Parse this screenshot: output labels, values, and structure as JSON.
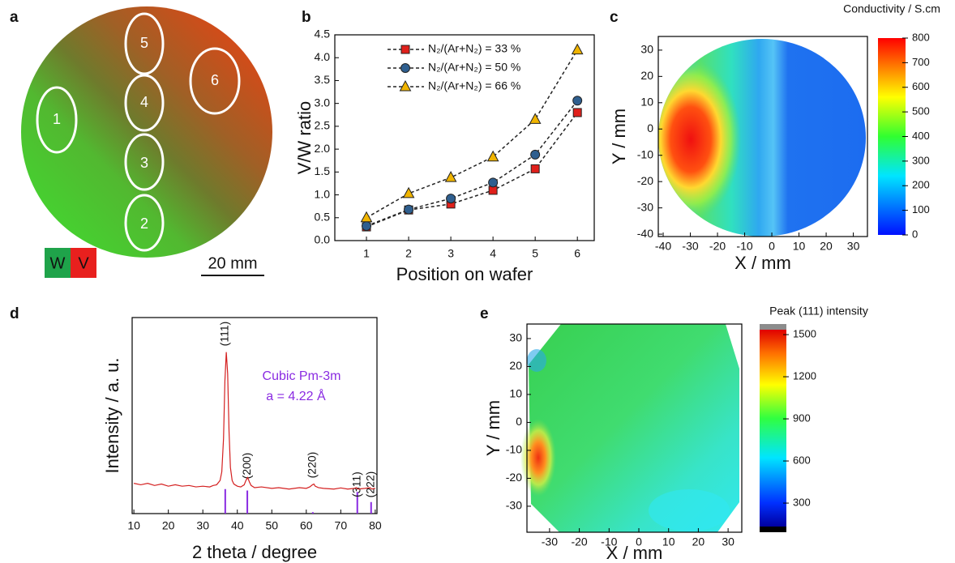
{
  "chart_data": [
    {
      "type": "image",
      "label": "a",
      "spot_labels": [
        "1",
        "2",
        "3",
        "4",
        "5",
        "6"
      ],
      "legend": [
        {
          "name": "W",
          "color": "#1fa34a"
        },
        {
          "name": "V",
          "color": "#e8201e"
        }
      ],
      "scale_bar": "20 mm"
    },
    {
      "type": "line",
      "label": "b",
      "xlabel": "Position on wafer",
      "ylabel": "V/W ratio",
      "x": [
        1,
        2,
        3,
        4,
        5,
        6
      ],
      "xlim": [
        0.25,
        6.4
      ],
      "xticks": [
        1,
        2,
        3,
        4,
        5,
        6
      ],
      "ylim": [
        0,
        4.5
      ],
      "yticks": [
        {
          "value": 0,
          "label": "0.0"
        },
        0.5,
        {
          "value": 1,
          "label": "1.0"
        },
        1.5,
        {
          "value": 2,
          "label": "2.0"
        },
        2.5,
        {
          "value": 3,
          "label": "3.0"
        },
        3.5,
        {
          "value": 4,
          "label": "4.0"
        },
        4.5
      ],
      "legend": "upper left",
      "series": [
        {
          "name": "N₂/(Ar+N₂) = 33 %",
          "color": "#e0201b",
          "marker": "square",
          "line_color": "#222222",
          "line_style": "dashed",
          "values": [
            0.3,
            0.67,
            0.8,
            1.1,
            1.57,
            2.8
          ]
        },
        {
          "name": "N₂/(Ar+N₂) = 50 %",
          "color": "#2f5f8f",
          "marker": "circle",
          "line_color": "#222222",
          "line_style": "dashed",
          "values": [
            0.32,
            0.68,
            0.92,
            1.27,
            1.88,
            3.06
          ]
        },
        {
          "name": "N₂/(Ar+N₂) = 66 %",
          "color": "#f0b400",
          "marker": "triangle",
          "line_color": "#222222",
          "line_style": "dashed",
          "values": [
            0.5,
            1.03,
            1.38,
            1.83,
            2.65,
            4.17
          ]
        }
      ]
    },
    {
      "type": "heatmap",
      "label": "c",
      "xlabel": "X / mm",
      "ylabel": "Y / mm",
      "xlim": [
        -41.8,
        35.2
      ],
      "xticks": [
        -40,
        -30,
        -20,
        -10,
        0,
        10,
        20,
        30
      ],
      "ylim": [
        -40.9,
        35.2
      ],
      "yticks": [
        -40,
        -30,
        -20,
        -10,
        0,
        10,
        20,
        30
      ],
      "colorbar_title": "Conductivity / S.cm",
      "colorbar_lim": [
        0,
        800
      ],
      "colorbar_ticks": [
        0,
        100,
        200,
        300,
        400,
        500,
        600,
        700,
        800
      ]
    },
    {
      "type": "line",
      "label": "d",
      "xlabel": "2 theta / degree",
      "ylabel": "Intensity / a. u.",
      "xlim": [
        9.5,
        80.5
      ],
      "xticks": [
        10,
        20,
        30,
        40,
        50,
        60,
        70,
        80
      ],
      "ylim": [
        -17,
        119
      ],
      "series": [
        {
          "color": "#d42020",
          "line_color": "#d42020",
          "line_style": "solid",
          "x": [
            10,
            12,
            14,
            16,
            18,
            20,
            22,
            24,
            26,
            28,
            30,
            32,
            33,
            34,
            35,
            35.5,
            36,
            36.4,
            36.8,
            37.2,
            37.6,
            38,
            38.5,
            39,
            40,
            41,
            42,
            42.5,
            43,
            43.5,
            44,
            45,
            47,
            50,
            52,
            55,
            58,
            60,
            61,
            61.8,
            62.2,
            62.6,
            63.5,
            65,
            68,
            70,
            72,
            74,
            74.5,
            75,
            77,
            78.5,
            79,
            80
          ],
          "values": [
            4,
            3,
            4,
            2.5,
            3.5,
            2,
            3,
            2,
            2.5,
            1.5,
            2,
            1.5,
            2.5,
            3,
            6,
            12,
            35,
            75,
            95,
            80,
            40,
            15,
            6,
            3.5,
            2,
            1.5,
            3,
            6,
            8,
            5,
            2.5,
            1,
            1.5,
            0.5,
            1,
            0,
            1,
            0.5,
            1.5,
            3,
            3.5,
            2,
            1,
            0.5,
            0,
            0.8,
            0,
            0.5,
            1,
            0,
            0.5,
            1,
            0,
            0.5
          ]
        }
      ],
      "reference": {
        "color": "#8a2be2",
        "labels": [
          "(111)",
          "(200)",
          "(220)",
          "(311)",
          "(222)"
        ],
        "x": [
          36.5,
          42.9,
          61.9,
          74.8,
          78.8
        ],
        "values": [
          0,
          -1,
          -16,
          -2,
          -9
        ]
      },
      "annotations": [
        "Cubic Pm-3m",
        "a = 4.22 Å"
      ],
      "annotation_color": "#8a2be2"
    },
    {
      "type": "heatmap",
      "label": "e",
      "xlabel": "X / mm",
      "ylabel": "Y / mm",
      "xlim": [
        -37.6,
        34.6
      ],
      "xticks": [
        -30,
        -20,
        -10,
        0,
        10,
        20,
        30
      ],
      "ylim": [
        -39.3,
        35.2
      ],
      "yticks": [
        -30,
        -20,
        -10,
        0,
        10,
        20,
        30
      ],
      "colorbar_title": "Peak (111) intensity",
      "colorbar_lim": [
        133,
        1535
      ],
      "colorbar_ticks": [
        300,
        600,
        900,
        1200,
        1500
      ]
    }
  ]
}
